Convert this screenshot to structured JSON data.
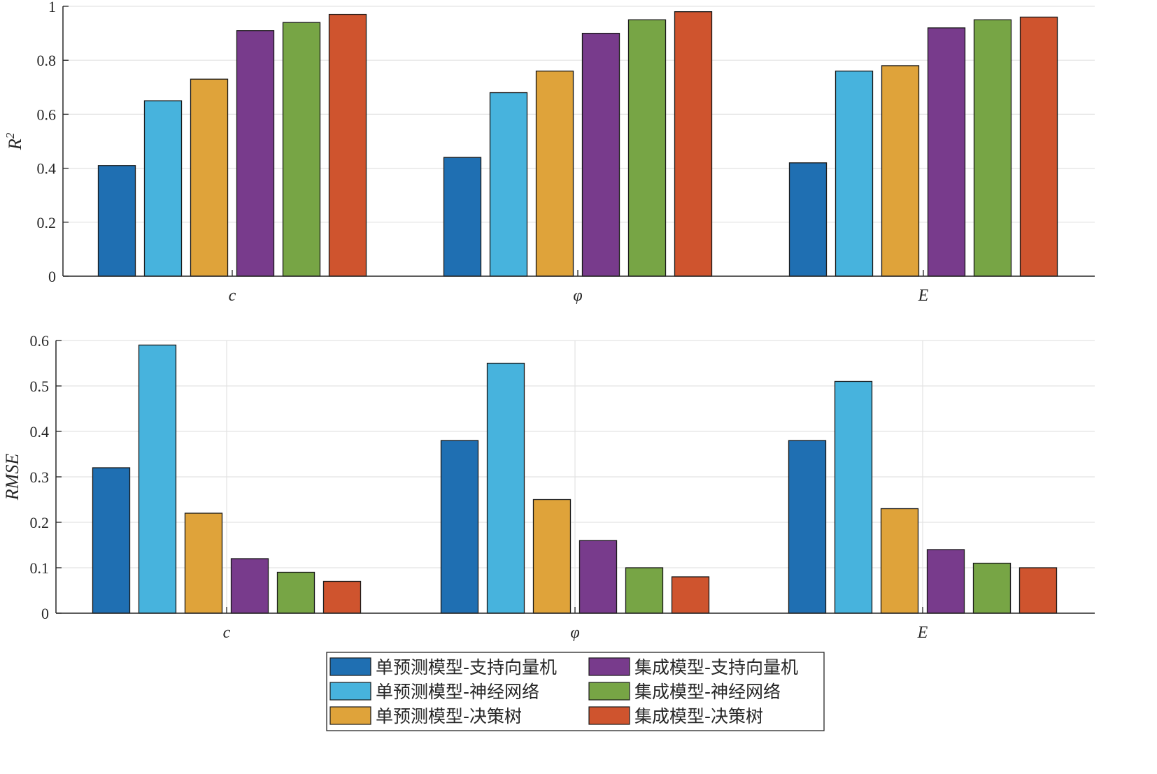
{
  "legend": {
    "items": [
      {
        "label": "单预测模型-支持向量机",
        "color": "#1f6fb2"
      },
      {
        "label": "单预测模型-神经网络",
        "color": "#47b3dd"
      },
      {
        "label": "单预测模型-决策树",
        "color": "#dfa33a"
      },
      {
        "label": "集成模型-支持向量机",
        "color": "#783b8c"
      },
      {
        "label": "集成模型-神经网络",
        "color": "#77a545"
      },
      {
        "label": "集成模型-决策树",
        "color": "#cf542e"
      }
    ]
  },
  "chart_data": [
    {
      "type": "bar",
      "ylabel": "R",
      "ylabel_superscript": "2",
      "xlabel": "",
      "categories": [
        "c",
        "φ",
        "E"
      ],
      "ylim": [
        0,
        1
      ],
      "yticks": [
        "0",
        "0.2",
        "0.4",
        "0.6",
        "0.8",
        "1"
      ],
      "grid": "horizontal",
      "series": [
        {
          "name": "单预测模型-支持向量机",
          "values": [
            0.41,
            0.44,
            0.42
          ]
        },
        {
          "name": "单预测模型-神经网络",
          "values": [
            0.65,
            0.68,
            0.76
          ]
        },
        {
          "name": "单预测模型-决策树",
          "values": [
            0.73,
            0.76,
            0.78
          ]
        },
        {
          "name": "集成模型-支持向量机",
          "values": [
            0.91,
            0.9,
            0.92
          ]
        },
        {
          "name": "集成模型-神经网络",
          "values": [
            0.94,
            0.95,
            0.95
          ]
        },
        {
          "name": "集成模型-决策树",
          "values": [
            0.97,
            0.98,
            0.96
          ]
        }
      ]
    },
    {
      "type": "bar",
      "ylabel": "RMSE",
      "xlabel": "",
      "categories": [
        "c",
        "φ",
        "E"
      ],
      "ylim": [
        0,
        0.6
      ],
      "yticks": [
        "0",
        "0.1",
        "0.2",
        "0.3",
        "0.4",
        "0.5",
        "0.6"
      ],
      "grid": "both",
      "series": [
        {
          "name": "单预测模型-支持向量机",
          "values": [
            0.32,
            0.38,
            0.38
          ]
        },
        {
          "name": "单预测模型-神经网络",
          "values": [
            0.59,
            0.55,
            0.51
          ]
        },
        {
          "name": "单预测模型-决策树",
          "values": [
            0.22,
            0.25,
            0.23
          ]
        },
        {
          "name": "集成模型-支持向量机",
          "values": [
            0.12,
            0.16,
            0.14
          ]
        },
        {
          "name": "集成模型-神经网络",
          "values": [
            0.09,
            0.1,
            0.11
          ]
        },
        {
          "name": "集成模型-决策树",
          "values": [
            0.07,
            0.08,
            0.1
          ]
        }
      ]
    }
  ]
}
